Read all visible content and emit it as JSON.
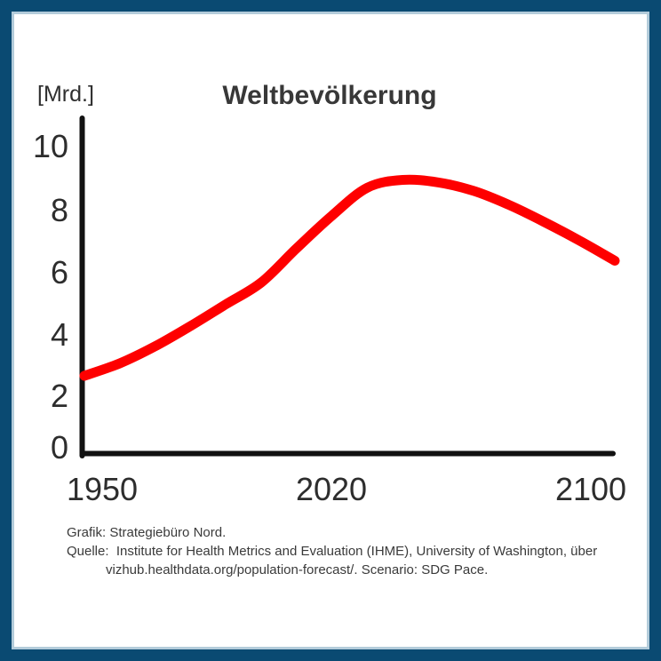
{
  "chart": {
    "title": "Weltbevölkerung",
    "y_unit": "[Mrd.]",
    "y_ticks": [
      "10",
      "8",
      "6",
      "4",
      "2",
      "0"
    ],
    "x_ticks": [
      "1950",
      "2020",
      "2100"
    ],
    "line_color": "#FE0000",
    "axis_color": "#121212",
    "frame_color": "#0A4A72",
    "frame_inner_edge_color": "#B3CCDA"
  },
  "footer": {
    "lines": [
      "Grafik: Strategiebüro Nord.",
      "Quelle:  Institute for Health Metrics and Evaluation (IHME), University of Washington, über",
      "vizhub.healthdata.org/population-forecast/. Scenario: SDG Pace."
    ]
  },
  "chart_data": {
    "type": "line",
    "title": "Weltbevölkerung",
    "xlabel": "",
    "ylabel": "[Mrd.]",
    "x": [
      1950,
      1960,
      1970,
      1980,
      1990,
      2000,
      2010,
      2020,
      2030,
      2040,
      2050,
      2060,
      2070,
      2080,
      2090,
      2100
    ],
    "series": [
      {
        "name": "Weltbevölkerung",
        "color": "#FE0000",
        "values": [
          2.6,
          3.0,
          3.55,
          4.2,
          4.9,
          5.6,
          6.7,
          7.75,
          8.65,
          8.9,
          8.82,
          8.55,
          8.1,
          7.55,
          6.95,
          6.3
        ]
      }
    ],
    "ylim": [
      0,
      10
    ],
    "y_tick_values": [
      0,
      2,
      4,
      6,
      8,
      10
    ],
    "x_tick_labels": [
      "1950",
      "2020",
      "2100"
    ],
    "grid": false,
    "legend": false
  }
}
